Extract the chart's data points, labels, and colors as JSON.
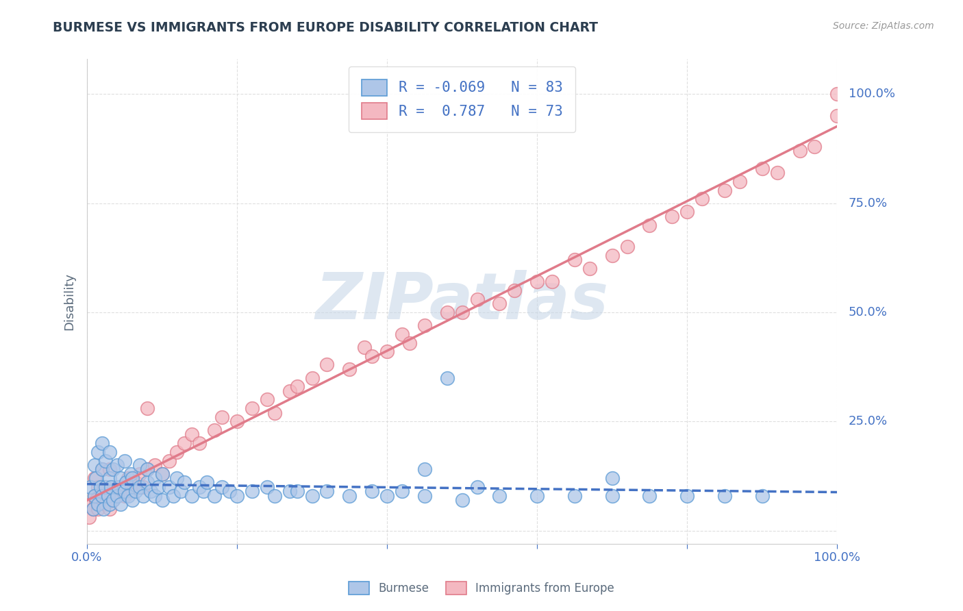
{
  "title": "BURMESE VS IMMIGRANTS FROM EUROPE DISABILITY CORRELATION CHART",
  "source": "Source: ZipAtlas.com",
  "ylabel": "Disability",
  "xlim": [
    0,
    100
  ],
  "ylim": [
    -3,
    108
  ],
  "series1_name": "Burmese",
  "series1_face": "#aec6e8",
  "series1_edge": "#5b9bd5",
  "series1_R": -0.069,
  "series1_N": 83,
  "series1_line_color": "#4472c4",
  "series2_name": "Immigrants from Europe",
  "series2_face": "#f4b8c1",
  "series2_edge": "#e07b8a",
  "series2_R": 0.787,
  "series2_N": 73,
  "series2_line_color": "#e07b8a",
  "watermark_text": "ZIPatlas",
  "watermark_color": "#c8d8e8",
  "background_color": "#ffffff",
  "grid_color": "#d8d8d8",
  "title_color": "#2c3e50",
  "axis_label_color": "#5b6b7c",
  "tick_color": "#4472c4",
  "legend_r_color": "#4472c4",
  "legend_n_color": "#4472c4",
  "burmese_x": [
    0.5,
    0.8,
    1.0,
    1.0,
    1.2,
    1.5,
    1.5,
    1.8,
    2.0,
    2.0,
    2.0,
    2.2,
    2.5,
    2.5,
    2.8,
    3.0,
    3.0,
    3.0,
    3.2,
    3.5,
    3.5,
    4.0,
    4.0,
    4.2,
    4.5,
    4.5,
    5.0,
    5.0,
    5.2,
    5.5,
    5.8,
    6.0,
    6.0,
    6.5,
    7.0,
    7.0,
    7.5,
    8.0,
    8.0,
    8.5,
    9.0,
    9.0,
    9.5,
    10.0,
    10.0,
    11.0,
    11.5,
    12.0,
    12.5,
    13.0,
    14.0,
    15.0,
    15.5,
    16.0,
    17.0,
    18.0,
    19.0,
    20.0,
    22.0,
    24.0,
    25.0,
    27.0,
    28.0,
    30.0,
    32.0,
    35.0,
    38.0,
    40.0,
    42.0,
    45.0,
    50.0,
    55.0,
    60.0,
    65.0,
    70.0,
    75.0,
    80.0,
    85.0,
    90.0,
    45.0,
    48.0,
    52.0,
    70.0
  ],
  "burmese_y": [
    10,
    5,
    8,
    15,
    12,
    6,
    18,
    10,
    8,
    14,
    20,
    5,
    10,
    16,
    8,
    6,
    12,
    18,
    10,
    7,
    14,
    8,
    15,
    10,
    12,
    6,
    9,
    16,
    11,
    8,
    13,
    7,
    12,
    9,
    10,
    15,
    8,
    11,
    14,
    9,
    12,
    8,
    10,
    7,
    13,
    10,
    8,
    12,
    9,
    11,
    8,
    10,
    9,
    11,
    8,
    10,
    9,
    8,
    9,
    10,
    8,
    9,
    9,
    8,
    9,
    8,
    9,
    8,
    9,
    8,
    7,
    8,
    8,
    8,
    8,
    8,
    8,
    8,
    8,
    14,
    35,
    10,
    12
  ],
  "europe_x": [
    0.3,
    0.5,
    0.8,
    1.0,
    1.0,
    1.2,
    1.5,
    1.5,
    2.0,
    2.0,
    2.5,
    2.5,
    3.0,
    3.0,
    3.5,
    4.0,
    4.5,
    5.0,
    5.5,
    6.0,
    6.5,
    7.0,
    7.5,
    8.0,
    9.0,
    10.0,
    11.0,
    12.0,
    13.0,
    14.0,
    15.0,
    17.0,
    18.0,
    20.0,
    22.0,
    24.0,
    25.0,
    27.0,
    28.0,
    30.0,
    32.0,
    35.0,
    37.0,
    38.0,
    40.0,
    42.0,
    43.0,
    45.0,
    48.0,
    50.0,
    52.0,
    55.0,
    57.0,
    60.0,
    62.0,
    65.0,
    67.0,
    70.0,
    72.0,
    75.0,
    78.0,
    80.0,
    82.0,
    85.0,
    87.0,
    90.0,
    92.0,
    95.0,
    97.0,
    100.0,
    100.0,
    3.0,
    8.0
  ],
  "europe_y": [
    3,
    6,
    5,
    8,
    12,
    7,
    5,
    10,
    8,
    14,
    6,
    10,
    5,
    9,
    7,
    8,
    10,
    8,
    12,
    9,
    11,
    13,
    10,
    14,
    15,
    13,
    16,
    18,
    20,
    22,
    20,
    23,
    26,
    25,
    28,
    30,
    27,
    32,
    33,
    35,
    38,
    37,
    42,
    40,
    41,
    45,
    43,
    47,
    50,
    50,
    53,
    52,
    55,
    57,
    57,
    62,
    60,
    63,
    65,
    70,
    72,
    73,
    76,
    78,
    80,
    83,
    82,
    87,
    88,
    95,
    100,
    14,
    28
  ]
}
